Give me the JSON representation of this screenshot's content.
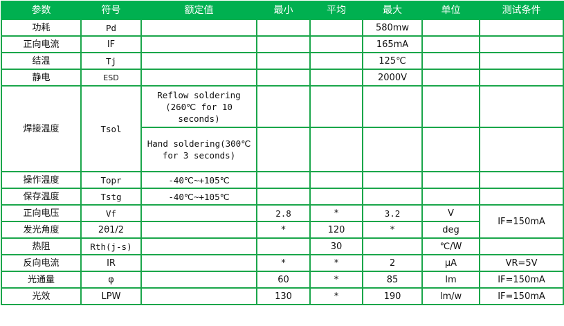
{
  "colors": {
    "header_bg": "#00b050",
    "border": "#1aa64a"
  },
  "headers": [
    "参数",
    "符号",
    "额定值",
    "最小",
    "平均",
    "最大",
    "单位",
    "测试条件"
  ],
  "rows": [
    {
      "param": "功耗",
      "symbol": "Pd",
      "rated": "",
      "min": "",
      "avg": "",
      "max": "580mw",
      "unit": "",
      "cond": ""
    },
    {
      "param": "正向电流",
      "symbol": "IF",
      "rated": "",
      "min": "",
      "avg": "",
      "max": "165mA",
      "unit": "",
      "cond": ""
    },
    {
      "param": "结温",
      "symbol": "Tj",
      "rated": "",
      "min": "",
      "avg": "",
      "max": "125℃",
      "unit": "",
      "cond": ""
    },
    {
      "param": "静电",
      "symbol": "ESD",
      "rated": "",
      "min": "",
      "avg": "",
      "max": "2000V",
      "unit": "",
      "cond": ""
    },
    {
      "param": "焊接温度",
      "symbol": "Tsol",
      "rated": "Reflow soldering (260℃ for 10 seconds)",
      "min": "",
      "avg": "",
      "max": "",
      "unit": "",
      "cond": ""
    },
    {
      "param": "",
      "symbol": "",
      "rated": "Hand soldering(300℃ for 3 seconds)",
      "min": "",
      "avg": "",
      "max": "",
      "unit": "",
      "cond": ""
    },
    {
      "param": "操作温度",
      "symbol": "Topr",
      "rated": "-40℃~+105℃",
      "min": "",
      "avg": "",
      "max": "",
      "unit": "",
      "cond": ""
    },
    {
      "param": "保存温度",
      "symbol": "Tstg",
      "rated": "-40℃~+105℃",
      "min": "",
      "avg": "",
      "max": "",
      "unit": "",
      "cond": ""
    },
    {
      "param": "正向电压",
      "symbol": "Vf",
      "rated": "",
      "min": "2.8",
      "avg": "*",
      "max": "3.2",
      "unit": "V",
      "cond": "IF=150mA"
    },
    {
      "param": "发光角度",
      "symbol": "2θ1/2",
      "rated": "",
      "min": "*",
      "avg": "120",
      "max": "*",
      "unit": "deg",
      "cond": ""
    },
    {
      "param": "热阻",
      "symbol": "Rth(j-s)",
      "rated": "",
      "min": "",
      "avg": "30",
      "max": "",
      "unit": "℃/W",
      "cond": ""
    },
    {
      "param": "反向电流",
      "symbol": "IR",
      "rated": "",
      "min": "*",
      "avg": "*",
      "max": "2",
      "unit": "μA",
      "cond": "VR=5V"
    },
    {
      "param": "光通量",
      "symbol": "φ",
      "rated": "",
      "min": "60",
      "avg": "*",
      "max": "85",
      "unit": "lm",
      "cond": "IF=150mA"
    },
    {
      "param": "光效",
      "symbol": "LPW",
      "rated": "",
      "min": "130",
      "avg": "*",
      "max": "190",
      "unit": "lm/w",
      "cond": "IF=150mA"
    }
  ]
}
